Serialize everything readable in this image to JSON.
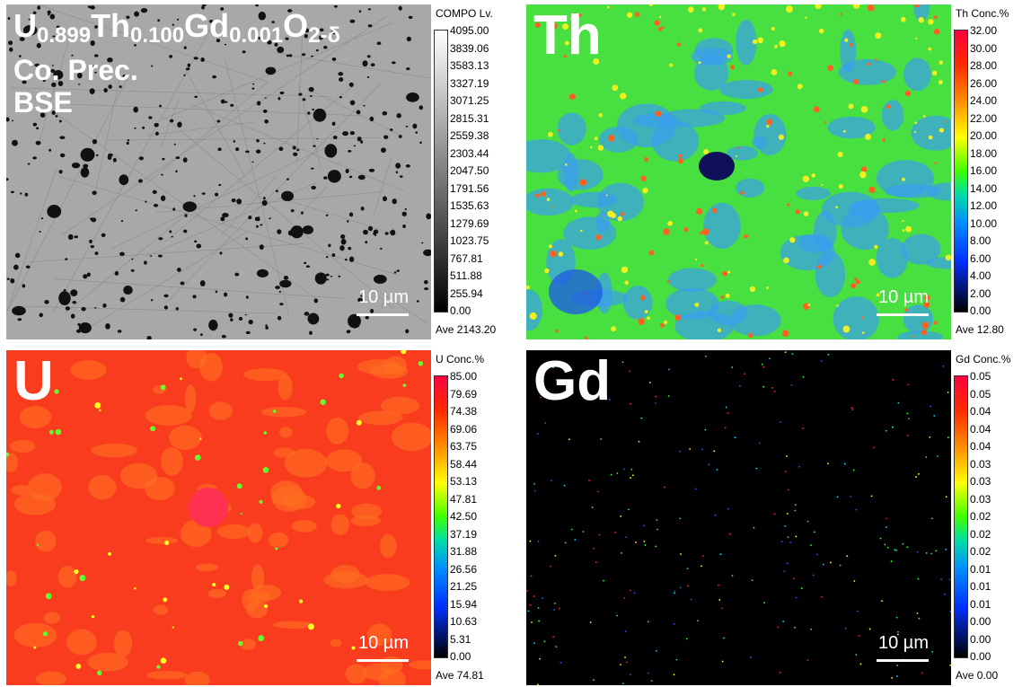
{
  "panels": [
    {
      "label": [
        "U",
        "0.899",
        "Th",
        "0.100",
        "Gd",
        "0.001",
        "O",
        "2-δ"
      ],
      "lines": [
        "Co. Prec.",
        "BSE"
      ],
      "colorbar": {
        "title": "COMPO Lv.",
        "ticks": [
          "4095.00",
          "3839.06",
          "3583.13",
          "3327.19",
          "3071.25",
          "2815.31",
          "2559.38",
          "2303.44",
          "2047.50",
          "1791.56",
          "1535.63",
          "1279.69",
          "1023.75",
          "767.81",
          "511.88",
          "255.94",
          "0.00"
        ],
        "average": "Ave 2143.20"
      },
      "scale_bar": "10 µm"
    },
    {
      "label": [
        "Th"
      ],
      "lines": [],
      "colorbar": {
        "title": "Th Conc.%",
        "ticks": [
          "32.00",
          "30.00",
          "28.00",
          "26.00",
          "24.00",
          "22.00",
          "20.00",
          "18.00",
          "16.00",
          "14.00",
          "12.00",
          "10.00",
          "8.00",
          "6.00",
          "4.00",
          "2.00",
          "0.00"
        ],
        "average": "Ave 12.80"
      },
      "scale_bar": "10 µm"
    },
    {
      "label": [
        "U"
      ],
      "lines": [],
      "colorbar": {
        "title": "U Conc.%",
        "ticks": [
          "85.00",
          "79.69",
          "74.38",
          "69.06",
          "63.75",
          "58.44",
          "53.13",
          "47.81",
          "42.50",
          "37.19",
          "31.88",
          "26.56",
          "21.25",
          "15.94",
          "10.63",
          "5.31",
          "0.00"
        ],
        "average": "Ave 74.81"
      },
      "scale_bar": "10 µm"
    },
    {
      "label": [
        "Gd"
      ],
      "lines": [],
      "colorbar": {
        "title": "Gd Conc.%",
        "ticks": [
          "0.05",
          "0.05",
          "0.04",
          "0.04",
          "0.04",
          "0.03",
          "0.03",
          "0.03",
          "0.02",
          "0.02",
          "0.02",
          "0.01",
          "0.01",
          "0.01",
          "0.00",
          "0.00",
          "0.00"
        ],
        "average": "Ave 0.00"
      },
      "scale_bar": "10 µm"
    }
  ]
}
